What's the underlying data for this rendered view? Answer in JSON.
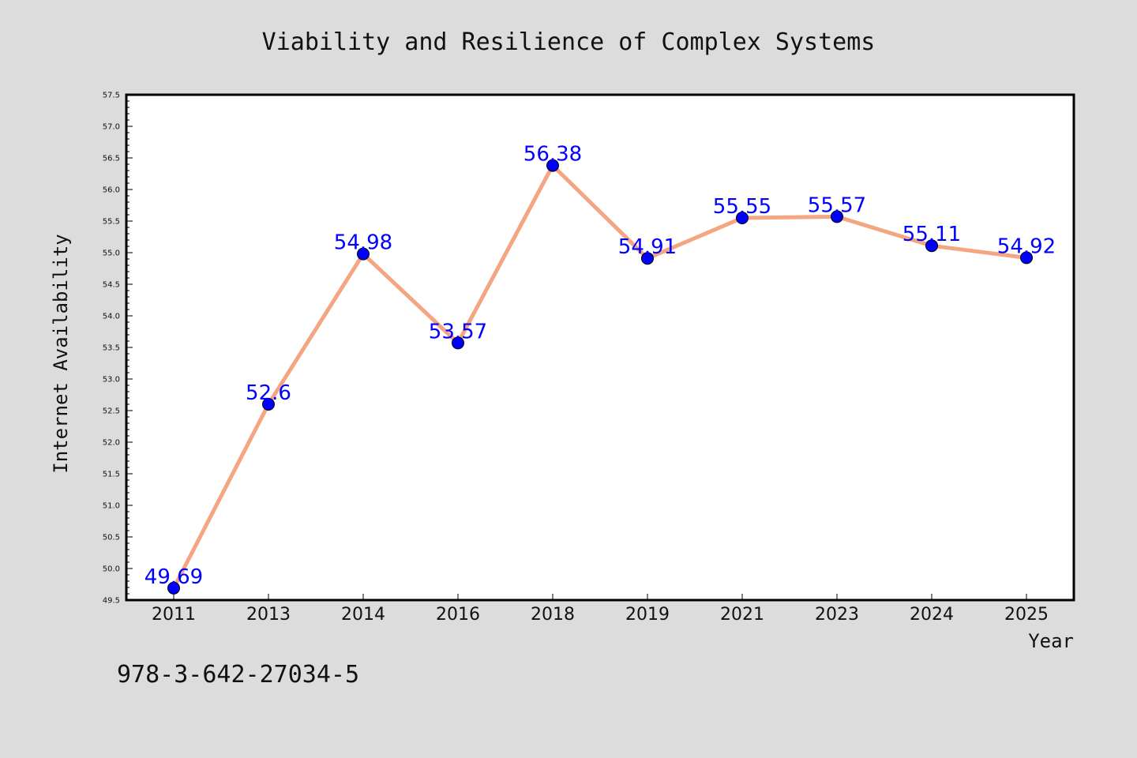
{
  "chart_data": {
    "type": "line",
    "title": "Viability and Resilience of Complex Systems",
    "xlabel": "Year",
    "ylabel": "Internet Availability",
    "categories": [
      "2011",
      "2013",
      "2014",
      "2016",
      "2018",
      "2019",
      "2021",
      "2023",
      "2024",
      "2025"
    ],
    "values": [
      49.69,
      52.6,
      54.98,
      53.57,
      56.38,
      54.91,
      55.55,
      55.57,
      55.11,
      54.92
    ],
    "value_labels": [
      "49.69",
      "52.6",
      "54.98",
      "53.57",
      "56.38",
      "54.91",
      "55.55",
      "55.57",
      "55.11",
      "54.92"
    ],
    "ylim": [
      49.5,
      57.5
    ],
    "yticks": [
      "49.5",
      "50.0",
      "50.5",
      "51.0",
      "51.5",
      "52.0",
      "52.5",
      "53.0",
      "53.5",
      "54.0",
      "54.5",
      "55.0",
      "55.5",
      "56.0",
      "56.5",
      "57.0",
      "57.5"
    ],
    "grid": false,
    "colors": {
      "line": "#f4a582",
      "marker": "#0000ff",
      "data_label": "#0000ff",
      "background": "#dcdcdc",
      "plot_background": "#ffffff"
    }
  },
  "footer": {
    "isbn": "978-3-642-27034-5"
  }
}
